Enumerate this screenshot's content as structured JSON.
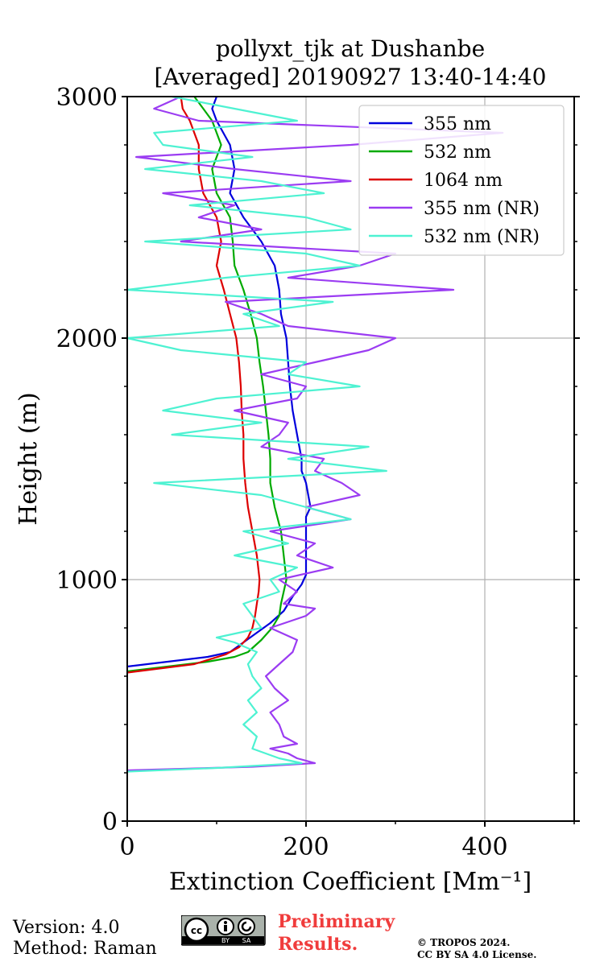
{
  "chart_data": {
    "type": "line",
    "title": "pollyxt_tjk at Dushanbe",
    "subtitle": "[Averaged] 20190927 13:40-14:40",
    "xlabel": "Extinction Coefficient [Mm⁻¹]",
    "ylabel": "Height (m)",
    "xlim": [
      0,
      500
    ],
    "ylim": [
      0,
      3000
    ],
    "xticks": [
      0,
      200,
      400
    ],
    "yticks": [
      0,
      1000,
      2000,
      3000
    ],
    "grid": true,
    "legend_position": "top-right",
    "series": [
      {
        "name": "355 nm",
        "color": "#0000dd",
        "height": [
          640,
          680,
          700,
          740,
          780,
          820,
          870,
          930,
          980,
          1020,
          1100,
          1200,
          1260,
          1300,
          1400,
          1450,
          1500,
          1600,
          1700,
          1800,
          1900,
          2000,
          2100,
          2200,
          2300,
          2400,
          2500,
          2600,
          2700,
          2800,
          2900,
          2950,
          3000
        ],
        "extinction": [
          0,
          90,
          115,
          130,
          145,
          160,
          175,
          185,
          195,
          200,
          200,
          200,
          200,
          205,
          200,
          195,
          195,
          190,
          185,
          182,
          180,
          178,
          172,
          170,
          165,
          150,
          130,
          115,
          120,
          115,
          100,
          95,
          100
        ]
      },
      {
        "name": "532 nm",
        "color": "#00aa00",
        "height": [
          620,
          660,
          680,
          700,
          750,
          800,
          850,
          900,
          950,
          1000,
          1100,
          1200,
          1300,
          1400,
          1500,
          1600,
          1700,
          1800,
          1900,
          2000,
          2100,
          2200,
          2300,
          2400,
          2500,
          2600,
          2700,
          2800,
          2900,
          2950,
          3000
        ],
        "extinction": [
          0,
          90,
          120,
          135,
          150,
          162,
          170,
          172,
          175,
          178,
          175,
          172,
          165,
          160,
          160,
          158,
          155,
          152,
          148,
          145,
          138,
          130,
          120,
          118,
          115,
          100,
          95,
          105,
          95,
          85,
          75
        ]
      },
      {
        "name": "1064 nm",
        "color": "#dd0000",
        "height": [
          615,
          650,
          690,
          720,
          760,
          800,
          850,
          900,
          950,
          1000,
          1100,
          1200,
          1300,
          1400,
          1500,
          1600,
          1700,
          1800,
          1900,
          2000,
          2100,
          2200,
          2300,
          2400,
          2500,
          2600,
          2700,
          2800,
          2900,
          2950,
          3000
        ],
        "extinction": [
          0,
          75,
          110,
          125,
          135,
          140,
          143,
          145,
          147,
          148,
          145,
          140,
          135,
          132,
          130,
          130,
          128,
          127,
          125,
          122,
          115,
          108,
          100,
          105,
          100,
          85,
          80,
          80,
          70,
          62,
          60
        ]
      },
      {
        "name": "355 nm (NR)",
        "color": "#9b3cf2",
        "height": [
          210,
          225,
          240,
          260,
          280,
          300,
          320,
          350,
          400,
          450,
          500,
          550,
          600,
          650,
          700,
          750,
          800,
          850,
          880,
          900,
          950,
          1000,
          1050,
          1100,
          1150,
          1200,
          1250,
          1300,
          1350,
          1400,
          1450,
          1500,
          1550,
          1600,
          1650,
          1700,
          1750,
          1800,
          1850,
          1900,
          1950,
          2000,
          2050,
          2100,
          2150,
          2200,
          2250,
          2300,
          2350,
          2400,
          2450,
          2500,
          2550,
          2600,
          2650,
          2700,
          2750,
          2800,
          2850,
          2900,
          2950,
          3000
        ],
        "extinction": [
          0,
          140,
          210,
          190,
          180,
          160,
          190,
          175,
          170,
          160,
          180,
          165,
          155,
          170,
          185,
          190,
          160,
          200,
          210,
          175,
          190,
          170,
          230,
          190,
          210,
          160,
          250,
          200,
          260,
          240,
          210,
          220,
          150,
          170,
          180,
          120,
          190,
          200,
          150,
          210,
          270,
          300,
          180,
          150,
          110,
          365,
          180,
          260,
          300,
          60,
          150,
          80,
          120,
          40,
          250,
          120,
          10,
          250,
          420,
          80,
          30,
          60
        ]
      },
      {
        "name": "532 nm (NR)",
        "color": "#4ef2d2",
        "height": [
          205,
          220,
          240,
          260,
          300,
          350,
          400,
          450,
          500,
          550,
          600,
          650,
          700,
          740,
          760,
          800,
          850,
          900,
          950,
          1000,
          1050,
          1100,
          1150,
          1200,
          1250,
          1300,
          1350,
          1400,
          1450,
          1500,
          1550,
          1600,
          1650,
          1700,
          1750,
          1800,
          1850,
          1900,
          1950,
          2000,
          2050,
          2100,
          2150,
          2200,
          2250,
          2300,
          2350,
          2400,
          2450,
          2500,
          2550,
          2600,
          2650,
          2700,
          2750,
          2800,
          2850,
          2900,
          2950,
          3000
        ],
        "extinction": [
          0,
          100,
          195,
          170,
          140,
          145,
          130,
          145,
          135,
          150,
          140,
          135,
          145,
          120,
          100,
          150,
          140,
          130,
          170,
          160,
          190,
          120,
          180,
          130,
          250,
          200,
          150,
          30,
          290,
          180,
          270,
          50,
          150,
          40,
          100,
          260,
          180,
          200,
          60,
          0,
          170,
          130,
          230,
          0,
          110,
          260,
          200,
          20,
          250,
          200,
          70,
          220,
          150,
          20,
          140,
          40,
          30,
          190,
          120,
          50
        ]
      }
    ]
  },
  "footer": {
    "version": "Version: 4.0",
    "method": "Method: Raman",
    "cc_icon": "cc-by-sa-icon",
    "cc_labels": [
      "BY",
      "SA"
    ],
    "preliminary_line1": "Preliminary",
    "preliminary_line2": "Results.",
    "copyright_line1": "© TROPOS 2024.",
    "copyright_line2": "CC BY SA 4.0 License."
  }
}
